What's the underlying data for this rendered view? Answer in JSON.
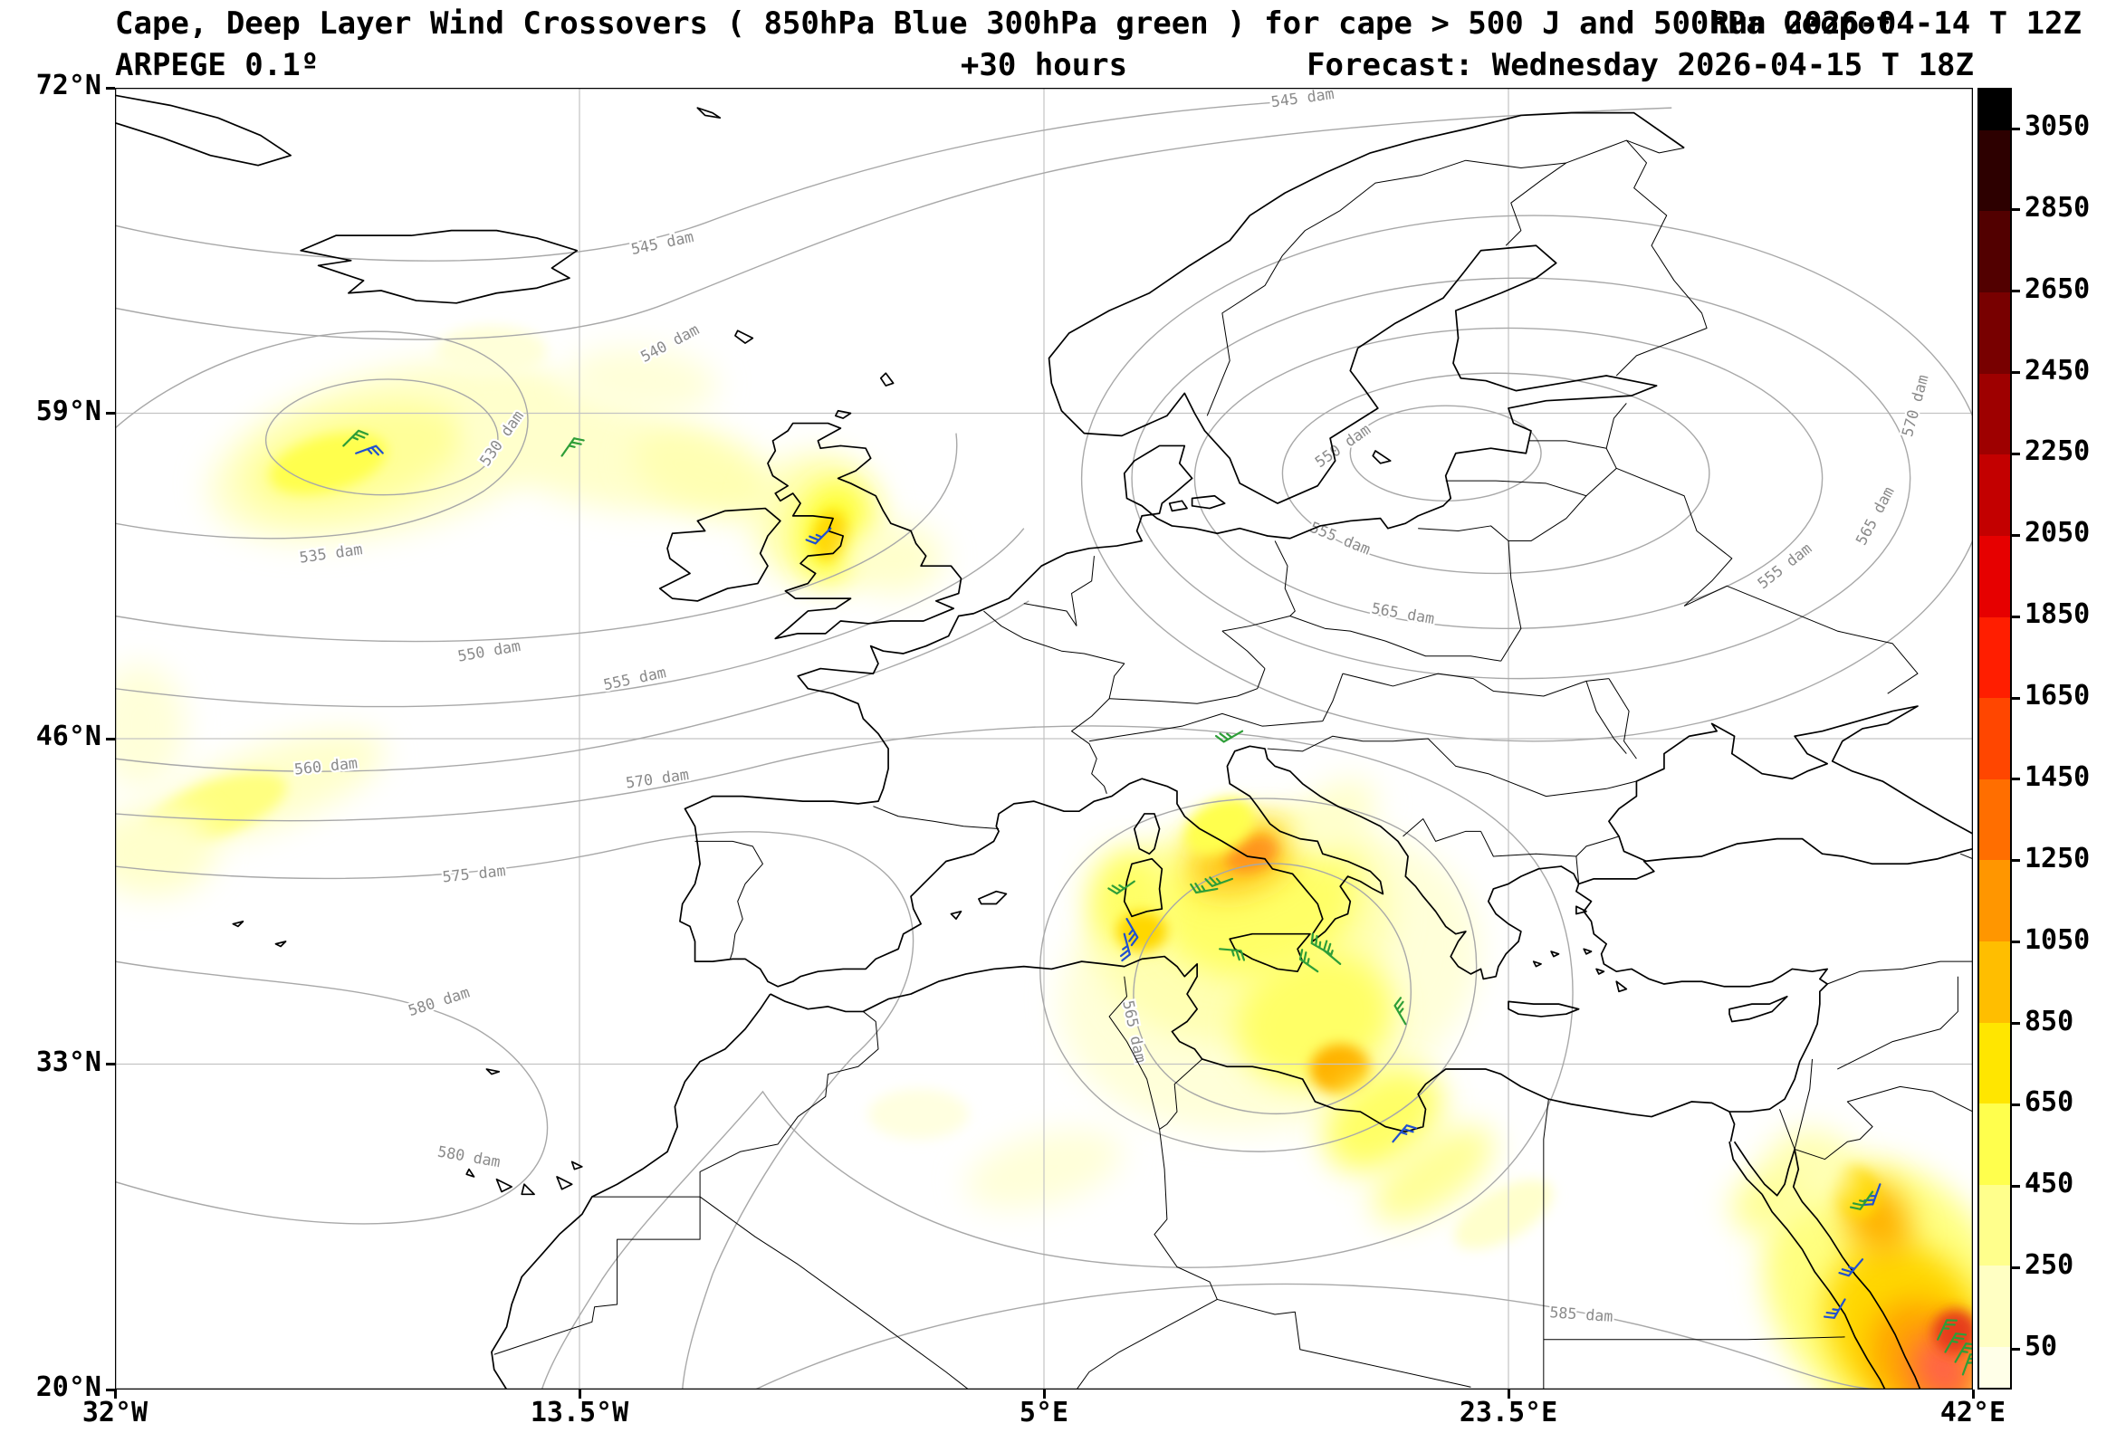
{
  "header": {
    "title": "Cape, Deep Layer Wind Crossovers ( 850hPa Blue 300hPa green ) for cape > 500 J and 500hPa Geopot",
    "run": "Run 2026-04-14 T 12Z",
    "model": "ARPEGE 0.1º",
    "lead": "+30 hours",
    "valid": "Forecast: Wednesday 2026-04-15 T 18Z"
  },
  "axes": {
    "extent": {
      "lon_min": -32,
      "lon_max": 42,
      "lat_min": 20,
      "lat_max": 72
    },
    "lat_ticks": [
      {
        "label": "72°N",
        "lat": 72
      },
      {
        "label": "59°N",
        "lat": 59
      },
      {
        "label": "46°N",
        "lat": 46
      },
      {
        "label": "33°N",
        "lat": 33
      },
      {
        "label": "20°N",
        "lat": 20
      }
    ],
    "lon_ticks": [
      {
        "label": "32°W",
        "lon": -32
      },
      {
        "label": "13.5°W",
        "lon": -13.5
      },
      {
        "label": "5°E",
        "lon": 5
      },
      {
        "label": "23.5°E",
        "lon": 23.5
      },
      {
        "label": "42°E",
        "lon": 42
      }
    ],
    "grid_lats": [
      59,
      46,
      33
    ],
    "grid_lons": [
      -13.5,
      5,
      23.5
    ]
  },
  "colorbar": {
    "ticks": [
      "3050",
      "2850",
      "2650",
      "2450",
      "2250",
      "2050",
      "1850",
      "1650",
      "1450",
      "1250",
      "1050",
      "850",
      "650",
      "450",
      "250",
      "50"
    ],
    "colors_top_to_bottom": [
      "#000000",
      "#2d0000",
      "#520000",
      "#780000",
      "#9e0000",
      "#c30000",
      "#e60000",
      "#ff1e00",
      "#ff4600",
      "#ff6e00",
      "#ff9600",
      "#ffbe00",
      "#ffe600",
      "#ffff4d",
      "#ffff8c",
      "#ffffc3",
      "#ffffe8"
    ]
  },
  "contours": {
    "unit": "dam",
    "labels": [
      {
        "text": "545 dam",
        "lon": -10.2,
        "lat": 65.8,
        "rot": -12
      },
      {
        "text": "545 dam",
        "lon": 15.3,
        "lat": 71.6,
        "rot": -8
      },
      {
        "text": "540 dam",
        "lon": -9.9,
        "lat": 61.8,
        "rot": -28
      },
      {
        "text": "530 dam",
        "lon": -16.6,
        "lat": 58.0,
        "rot": -55
      },
      {
        "text": "535 dam",
        "lon": -23.4,
        "lat": 53.4,
        "rot": -8
      },
      {
        "text": "550 dam",
        "lon": -17.1,
        "lat": 49.5,
        "rot": -10
      },
      {
        "text": "555 dam",
        "lon": -11.3,
        "lat": 48.4,
        "rot": -12
      },
      {
        "text": "560 dam",
        "lon": -23.6,
        "lat": 44.9,
        "rot": -6
      },
      {
        "text": "570 dam",
        "lon": -10.4,
        "lat": 44.4,
        "rot": -8
      },
      {
        "text": "575 dam",
        "lon": -17.7,
        "lat": 40.6,
        "rot": -6
      },
      {
        "text": "580 dam",
        "lon": -19.1,
        "lat": 35.5,
        "rot": -18
      },
      {
        "text": "580 dam",
        "lon": -17.9,
        "lat": 29.3,
        "rot": 10
      },
      {
        "text": "585 dam",
        "lon": 26.4,
        "lat": 23.0,
        "rot": 4
      },
      {
        "text": "550 dam",
        "lon": 16.9,
        "lat": 57.7,
        "rot": -35
      },
      {
        "text": "555 dam",
        "lon": 16.8,
        "lat": 54.0,
        "rot": 22
      },
      {
        "text": "555 dam",
        "lon": 34.5,
        "lat": 52.9,
        "rot": -38
      },
      {
        "text": "565 dam",
        "lon": 38.1,
        "lat": 54.9,
        "rot": -62
      },
      {
        "text": "570 dam",
        "lon": 39.7,
        "lat": 59.3,
        "rot": -75
      },
      {
        "text": "565 dam",
        "lon": 8.6,
        "lat": 34.3,
        "rot": 78
      },
      {
        "text": "565 dam",
        "lon": 19.3,
        "lat": 51.0,
        "rot": 10
      }
    ]
  },
  "wind_barbs": {
    "legend": {
      "850hPa": "blue",
      "300hPa": "green"
    },
    "colors": {
      "850hPa": "#2050d0",
      "300hPa": "#2e9e38"
    },
    "barbs": [
      {
        "lon": -22.9,
        "lat": 57.7,
        "level": "300hPa",
        "rot": 45
      },
      {
        "lon": -22.4,
        "lat": 57.4,
        "level": "850hPa",
        "rot": 70
      },
      {
        "lon": -14.2,
        "lat": 57.3,
        "level": "300hPa",
        "rot": 35
      },
      {
        "lon": -3.5,
        "lat": 54.4,
        "level": "850hPa",
        "rot": 225
      },
      {
        "lon": 12.9,
        "lat": 46.3,
        "level": "300hPa",
        "rot": 240
      },
      {
        "lon": 8.6,
        "lat": 40.3,
        "level": "300hPa",
        "rot": 235
      },
      {
        "lon": 8.3,
        "lat": 38.8,
        "level": "850hPa",
        "rot": 150
      },
      {
        "lon": 8.2,
        "lat": 38.2,
        "level": "850hPa",
        "rot": 165
      },
      {
        "lon": 12.5,
        "lat": 40.4,
        "level": "300hPa",
        "rot": 250
      },
      {
        "lon": 11.9,
        "lat": 40.0,
        "level": "300hPa",
        "rot": 260
      },
      {
        "lon": 12.0,
        "lat": 37.6,
        "level": "300hPa",
        "rot": 95
      },
      {
        "lon": 16.4,
        "lat": 37.4,
        "level": "300hPa",
        "rot": 300
      },
      {
        "lon": 16.8,
        "lat": 37.0,
        "level": "300hPa",
        "rot": 310
      },
      {
        "lon": 15.9,
        "lat": 36.7,
        "level": "300hPa",
        "rot": 305
      },
      {
        "lon": 19.4,
        "lat": 34.6,
        "level": "300hPa",
        "rot": 330
      },
      {
        "lon": 18.9,
        "lat": 29.9,
        "level": "850hPa",
        "rot": 40
      },
      {
        "lon": 38.3,
        "lat": 28.2,
        "level": "850hPa",
        "rot": 200
      },
      {
        "lon": 38.0,
        "lat": 27.9,
        "level": "300hPa",
        "rot": 215
      },
      {
        "lon": 37.6,
        "lat": 25.2,
        "level": "850hPa",
        "rot": 220
      },
      {
        "lon": 36.9,
        "lat": 23.6,
        "level": "850hPa",
        "rot": 210
      },
      {
        "lon": 40.6,
        "lat": 22.0,
        "level": "300hPa",
        "rot": 25
      },
      {
        "lon": 40.9,
        "lat": 21.5,
        "level": "300hPa",
        "rot": 30
      },
      {
        "lon": 41.3,
        "lat": 21.1,
        "level": "300hPa",
        "rot": 30
      },
      {
        "lon": 41.6,
        "lat": 20.6,
        "level": "300hPa",
        "rot": 20
      }
    ]
  },
  "chart_data": {
    "type": "heatmap",
    "field": "CAPE (J/kg), shaded where > 500 J",
    "colorbar_range": [
      50,
      3050
    ],
    "colorbar_step": 200,
    "overlays": [
      "500 hPa geopotential contours (dam)",
      "850 hPa wind barbs (blue)",
      "300 hPa wind barbs (green)"
    ],
    "geopotential_labeled_values_dam": [
      530,
      535,
      540,
      545,
      550,
      555,
      560,
      565,
      570,
      575,
      580,
      585
    ],
    "cape_regions": [
      {
        "lon": -21,
        "lat": 57.5,
        "rx": 7.5,
        "ry": 3.2,
        "rot": -15,
        "color": "#ffffcc",
        "cape": 250
      },
      {
        "lon": -22.5,
        "lat": 57.2,
        "rx": 4.5,
        "ry": 2.0,
        "rot": -15,
        "color": "#ffff99",
        "cape": 450
      },
      {
        "lon": -23.5,
        "lat": 57.0,
        "rx": 2.4,
        "ry": 1.1,
        "rot": -15,
        "color": "#ffff4d",
        "cape": 700
      },
      {
        "lon": -13,
        "lat": 57.6,
        "rx": 5.0,
        "ry": 2.2,
        "rot": 15,
        "color": "#ffffcc",
        "cape": 250
      },
      {
        "lon": -8.5,
        "lat": 56.6,
        "rx": 3.0,
        "ry": 1.6,
        "rot": 20,
        "color": "#ffffb3",
        "cape": 350
      },
      {
        "lon": -11,
        "lat": 60.3,
        "rx": 3.0,
        "ry": 1.3,
        "rot": 5,
        "color": "#ffffd9",
        "cape": 150
      },
      {
        "lon": -17,
        "lat": 61.5,
        "rx": 2.2,
        "ry": 1.0,
        "rot": 0,
        "color": "#ffffd9",
        "cape": 150
      },
      {
        "lon": -4,
        "lat": 54.8,
        "rx": 2.6,
        "ry": 2.6,
        "rot": 0,
        "color": "#ffffb3",
        "cape": 350
      },
      {
        "lon": -3.4,
        "lat": 54.3,
        "rx": 1.4,
        "ry": 2.0,
        "rot": 10,
        "color": "#ffff33",
        "cape": 800
      },
      {
        "lon": -3.5,
        "lat": 54.1,
        "rx": 0.7,
        "ry": 1.0,
        "rot": 10,
        "color": "#ffd700",
        "cape": 1000
      },
      {
        "lon": -1,
        "lat": 53.2,
        "rx": 2.0,
        "ry": 1.4,
        "rot": 0,
        "color": "#ffffcc",
        "cape": 250
      },
      {
        "lon": -26,
        "lat": 44.0,
        "rx": 5.0,
        "ry": 1.6,
        "rot": -20,
        "color": "#ffffcc",
        "cape": 250
      },
      {
        "lon": -28,
        "lat": 43.2,
        "rx": 3.0,
        "ry": 1.1,
        "rot": -20,
        "color": "#ffff80",
        "cape": 550
      },
      {
        "lon": -30.5,
        "lat": 41.5,
        "rx": 2.5,
        "ry": 1.8,
        "rot": 0,
        "color": "#ffffcc",
        "cape": 250
      },
      {
        "lon": -31,
        "lat": 46.5,
        "rx": 1.8,
        "ry": 2.5,
        "rot": 0,
        "color": "#ffffd9",
        "cape": 150
      },
      {
        "lon": 14,
        "lat": 36.5,
        "rx": 8.5,
        "ry": 6.0,
        "rot": -15,
        "color": "#ffffd9",
        "cape": 150
      },
      {
        "lon": 13,
        "lat": 38.5,
        "rx": 6.0,
        "ry": 4.5,
        "rot": -15,
        "color": "#ffffb3",
        "cape": 350
      },
      {
        "lon": 13.5,
        "lat": 39.5,
        "rx": 4.0,
        "ry": 3.0,
        "rot": -10,
        "color": "#ffff66",
        "cape": 600
      },
      {
        "lon": 12.9,
        "lat": 41.2,
        "rx": 2.2,
        "ry": 1.3,
        "rot": -20,
        "color": "#ffc81e",
        "cape": 1100
      },
      {
        "lon": 13.3,
        "lat": 41.4,
        "rx": 1.1,
        "ry": 0.7,
        "rot": -20,
        "color": "#ff961e",
        "cape": 1500
      },
      {
        "lon": 12,
        "lat": 42.5,
        "rx": 1.5,
        "ry": 1.0,
        "rot": -30,
        "color": "#ffff4d",
        "cape": 700
      },
      {
        "lon": 8.4,
        "lat": 39.6,
        "rx": 1.6,
        "ry": 2.0,
        "rot": 0,
        "color": "#ffff66",
        "cape": 600
      },
      {
        "lon": 8.9,
        "lat": 38.3,
        "rx": 1.0,
        "ry": 0.8,
        "rot": 0,
        "color": "#ffd700",
        "cape": 900
      },
      {
        "lon": 15.8,
        "lat": 34.8,
        "rx": 3.2,
        "ry": 2.6,
        "rot": -20,
        "color": "#ffff66",
        "cape": 600
      },
      {
        "lon": 16.8,
        "lat": 32.8,
        "rx": 1.2,
        "ry": 1.0,
        "rot": 0,
        "color": "#ffb300",
        "cape": 1300
      },
      {
        "lon": 18.5,
        "lat": 30.8,
        "rx": 2.6,
        "ry": 1.8,
        "rot": -35,
        "color": "#ffff66",
        "cape": 600
      },
      {
        "lon": 20.5,
        "lat": 28.6,
        "rx": 2.8,
        "ry": 1.3,
        "rot": -35,
        "color": "#ffff99",
        "cape": 450
      },
      {
        "lon": 23.3,
        "lat": 27.0,
        "rx": 2.2,
        "ry": 1.0,
        "rot": -30,
        "color": "#ffffcc",
        "cape": 250
      },
      {
        "lon": 16.5,
        "lat": 42.8,
        "rx": 2.0,
        "ry": 1.2,
        "rot": -40,
        "color": "#ffffcc",
        "cape": 250
      },
      {
        "lon": 5,
        "lat": 28.8,
        "rx": 3.2,
        "ry": 1.4,
        "rot": -15,
        "color": "#ffffd9",
        "cape": 150
      },
      {
        "lon": 0,
        "lat": 31.0,
        "rx": 2.0,
        "ry": 1.0,
        "rot": 0,
        "color": "#ffffe0",
        "cape": 100
      },
      {
        "lon": 38.5,
        "lat": 24.0,
        "rx": 4.5,
        "ry": 5.5,
        "rot": -35,
        "color": "#ffff80",
        "cape": 550
      },
      {
        "lon": 39.3,
        "lat": 22.5,
        "rx": 3.0,
        "ry": 3.6,
        "rot": -35,
        "color": "#ffd700",
        "cape": 950
      },
      {
        "lon": 40,
        "lat": 21.3,
        "rx": 2.0,
        "ry": 2.4,
        "rot": -30,
        "color": "#ffa500",
        "cape": 1350
      },
      {
        "lon": 40.8,
        "lat": 20.8,
        "rx": 1.2,
        "ry": 1.5,
        "rot": -30,
        "color": "#ff6347",
        "cape": 1800
      },
      {
        "lon": 41.3,
        "lat": 22.3,
        "rx": 0.9,
        "ry": 0.9,
        "rot": 0,
        "color": "#e63e1e",
        "cape": 2000
      },
      {
        "lon": 38.2,
        "lat": 26.8,
        "rx": 1.2,
        "ry": 1.6,
        "rot": -30,
        "color": "#ffb300",
        "cape": 1300
      },
      {
        "lon": 37.3,
        "lat": 27.9,
        "rx": 0.9,
        "ry": 1.1,
        "rot": -30,
        "color": "#ffd700",
        "cape": 950
      },
      {
        "lon": 35.5,
        "lat": 28.8,
        "rx": 1.8,
        "ry": 1.6,
        "rot": 0,
        "color": "#ffffb3",
        "cape": 350
      },
      {
        "lon": 33.8,
        "lat": 27.5,
        "rx": 1.5,
        "ry": 1.2,
        "rot": -30,
        "color": "#ffff99",
        "cape": 450
      }
    ]
  }
}
